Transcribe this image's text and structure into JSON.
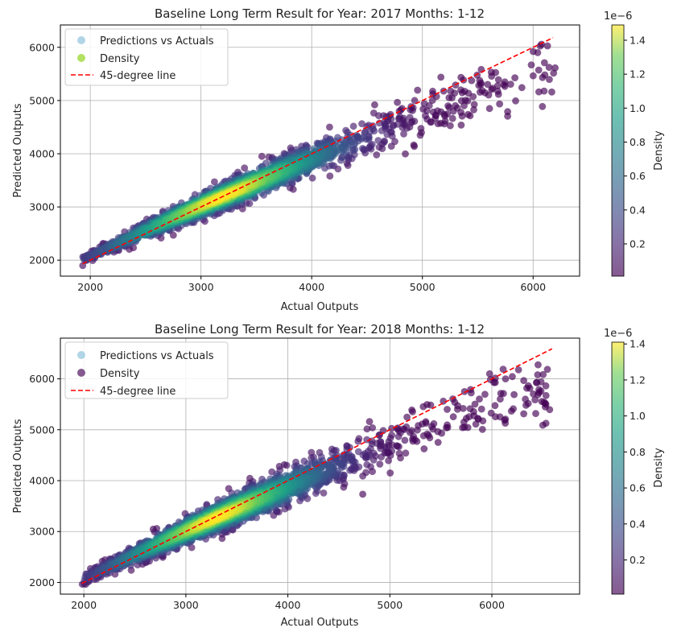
{
  "chart_data": [
    {
      "type": "scatter",
      "title": "Baseline Long Term Result for Year: 2017 Months: 1-12",
      "xlabel": "Actual Outputs",
      "ylabel": "Predicted Outputs",
      "xlim": [
        1730,
        6420
      ],
      "ylim": [
        1700,
        6420
      ],
      "xticks": [
        2000,
        3000,
        4000,
        5000,
        6000
      ],
      "yticks": [
        2000,
        3000,
        4000,
        5000,
        6000
      ],
      "xtick_labels": [
        "2000",
        "3000",
        "4000",
        "5000",
        "6000"
      ],
      "ytick_labels": [
        "2000",
        "3000",
        "4000",
        "5000",
        "6000"
      ],
      "grid": true,
      "legend_position": "top-left",
      "legend": [
        {
          "label": "Predictions vs Actuals",
          "kind": "marker",
          "color": "#9ecae1"
        },
        {
          "label": "Density",
          "kind": "marker",
          "color": "#a0da39"
        },
        {
          "label": "45-degree line",
          "kind": "dashed-line",
          "color": "#ff0000"
        }
      ],
      "reference_line": {
        "from": [
          1930,
          1930
        ],
        "to": [
          6180,
          6180
        ],
        "color": "#ff0000",
        "style": "dashed"
      },
      "colorbar": {
        "label": "Density",
        "exponent": "1e−6",
        "range": [
          0.01,
          1.49
        ],
        "ticks": [
          0.2,
          0.4,
          0.6,
          0.8,
          1.0,
          1.2,
          1.4
        ],
        "tick_labels": [
          "0.2",
          "0.4",
          "0.6",
          "0.8",
          "1.0",
          "1.2",
          "1.4"
        ],
        "colormap": "viridis",
        "alpha": 0.65
      },
      "point_cloud": {
        "x_range": [
          1930,
          6200
        ],
        "y_range": [
          2080,
          5830
        ],
        "y_trend_pairs": [
          [
            1930,
            2010
          ],
          [
            2500,
            2560
          ],
          [
            3000,
            3020
          ],
          [
            3500,
            3460
          ],
          [
            4000,
            3900
          ],
          [
            4500,
            4300
          ],
          [
            5000,
            4700
          ],
          [
            5500,
            5130
          ],
          [
            6000,
            5550
          ],
          [
            6200,
            5760
          ]
        ],
        "spread_pairs": [
          [
            2000,
            50
          ],
          [
            3000,
            110
          ],
          [
            4000,
            150
          ],
          [
            5000,
            230
          ],
          [
            6000,
            300
          ]
        ],
        "density_peak_x": 3200,
        "approx_points": 2200
      }
    },
    {
      "type": "scatter",
      "title": "Baseline Long Term Result for Year: 2018 Months: 1-12",
      "xlabel": "Actual Outputs",
      "ylabel": "Predicted Outputs",
      "xlim": [
        1770,
        6860
      ],
      "ylim": [
        1770,
        6800
      ],
      "xticks": [
        2000,
        3000,
        4000,
        5000,
        6000
      ],
      "yticks": [
        2000,
        3000,
        4000,
        5000,
        6000
      ],
      "xtick_labels": [
        "2000",
        "3000",
        "4000",
        "5000",
        "6000"
      ],
      "ytick_labels": [
        "2000",
        "3000",
        "4000",
        "5000",
        "6000"
      ],
      "grid": true,
      "legend_position": "top-left",
      "legend": [
        {
          "label": "Predictions vs Actuals",
          "kind": "marker",
          "color": "#9ecae1"
        },
        {
          "label": "Density",
          "kind": "marker",
          "color": "#440154"
        },
        {
          "label": "45-degree line",
          "kind": "dashed-line",
          "color": "#ff0000"
        }
      ],
      "reference_line": {
        "from": [
          1980,
          1980
        ],
        "to": [
          6590,
          6590
        ],
        "color": "#ff0000",
        "style": "dashed"
      },
      "colorbar": {
        "label": "Density",
        "exponent": "1e−6",
        "range": [
          0.01,
          1.41
        ],
        "ticks": [
          0.2,
          0.4,
          0.6,
          0.8,
          1.0,
          1.2,
          1.4
        ],
        "tick_labels": [
          "0.2",
          "0.4",
          "0.6",
          "0.8",
          "1.0",
          "1.2",
          "1.4"
        ],
        "colormap": "viridis",
        "alpha": 0.65
      },
      "point_cloud": {
        "x_range": [
          1980,
          6570
        ],
        "y_range": [
          2000,
          5920
        ],
        "y_trend_pairs": [
          [
            1980,
            2060
          ],
          [
            2500,
            2540
          ],
          [
            3000,
            3010
          ],
          [
            3500,
            3450
          ],
          [
            4000,
            3880
          ],
          [
            4500,
            4300
          ],
          [
            5000,
            4720
          ],
          [
            5500,
            5130
          ],
          [
            6000,
            5550
          ],
          [
            6570,
            5900
          ]
        ],
        "spread_pairs": [
          [
            2000,
            60
          ],
          [
            3000,
            120
          ],
          [
            4000,
            170
          ],
          [
            5000,
            240
          ],
          [
            6000,
            300
          ]
        ],
        "density_peak_x": 3300,
        "approx_points": 2400
      }
    }
  ]
}
